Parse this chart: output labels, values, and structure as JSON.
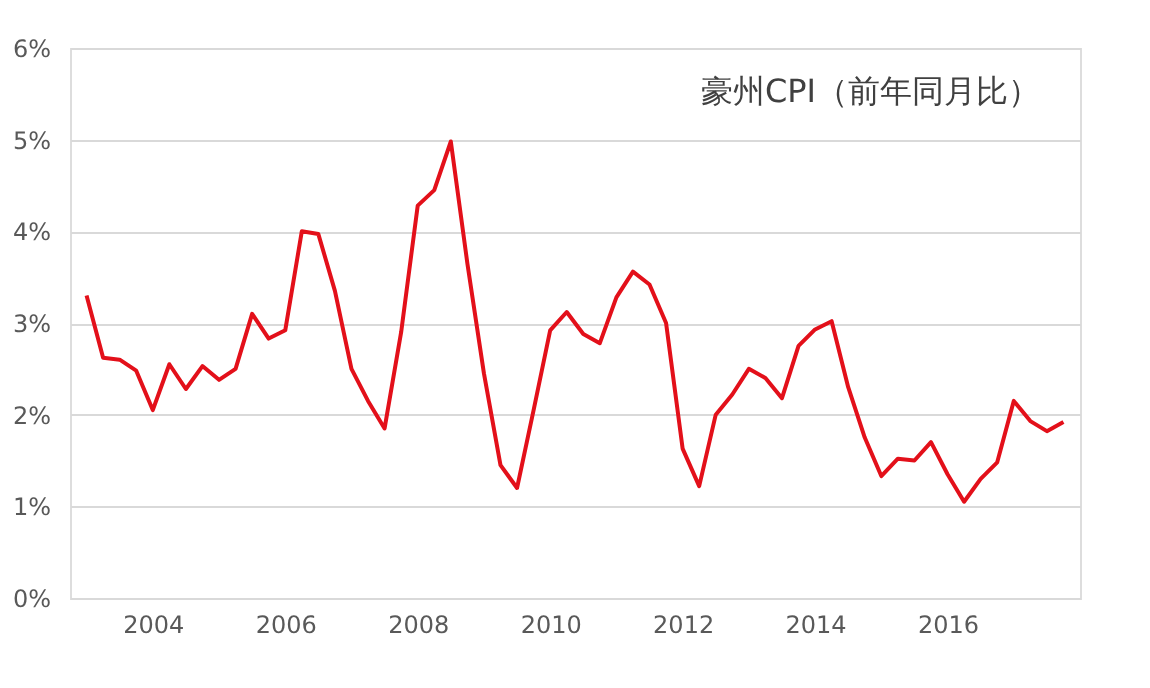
{
  "chart_data": {
    "type": "line",
    "title": "豪州CPI（前年同月比）",
    "x": [
      2003.0,
      2003.25,
      2003.5,
      2003.75,
      2004.0,
      2004.25,
      2004.5,
      2004.75,
      2005.0,
      2005.25,
      2005.5,
      2005.75,
      2006.0,
      2006.25,
      2006.5,
      2006.75,
      2007.0,
      2007.25,
      2007.5,
      2007.75,
      2008.0,
      2008.25,
      2008.5,
      2008.75,
      2009.0,
      2009.25,
      2009.5,
      2009.75,
      2010.0,
      2010.25,
      2010.5,
      2010.75,
      2011.0,
      2011.25,
      2011.5,
      2011.75,
      2012.0,
      2012.25,
      2012.5,
      2012.75,
      2013.0,
      2013.25,
      2013.5,
      2013.75,
      2014.0,
      2014.25,
      2014.5,
      2014.75,
      2015.0,
      2015.25,
      2015.5,
      2015.75,
      2016.0,
      2016.25,
      2016.5,
      2016.75,
      2017.0,
      2017.25,
      2017.5,
      2017.75
    ],
    "series": [
      {
        "color": "#e3101a",
        "values": [
          3.3,
          2.62,
          2.6,
          2.48,
          2.05,
          2.55,
          2.28,
          2.53,
          2.38,
          2.5,
          3.1,
          2.83,
          2.92,
          4.0,
          3.97,
          3.35,
          2.5,
          2.15,
          1.85,
          2.9,
          4.28,
          4.45,
          4.98,
          3.65,
          2.45,
          1.45,
          1.2,
          2.05,
          2.92,
          3.12,
          2.88,
          2.78,
          3.28,
          3.56,
          3.42,
          3.0,
          1.63,
          1.22,
          2.0,
          2.22,
          2.5,
          2.4,
          2.18,
          2.75,
          2.93,
          3.02,
          2.3,
          1.75,
          1.33,
          1.52,
          1.5,
          1.7,
          1.35,
          1.05,
          1.3,
          1.48,
          2.15,
          1.93,
          1.82,
          1.92
        ]
      }
    ],
    "xlim": [
      2002.75,
      2018.0
    ],
    "xticks": [
      2004,
      2006,
      2008,
      2010,
      2012,
      2014,
      2016
    ],
    "ylim": [
      0,
      6
    ],
    "yticks": [
      {
        "value": 0,
        "label": "0%"
      },
      {
        "value": 1,
        "label": "1%"
      },
      {
        "value": 2,
        "label": "2%"
      },
      {
        "value": 3,
        "label": "3%"
      },
      {
        "value": 4,
        "label": "4%"
      },
      {
        "value": 5,
        "label": "5%"
      },
      {
        "value": 6,
        "label": "6%"
      }
    ],
    "grid": "y",
    "legend": false,
    "marker": "none",
    "line_style": "solid"
  }
}
